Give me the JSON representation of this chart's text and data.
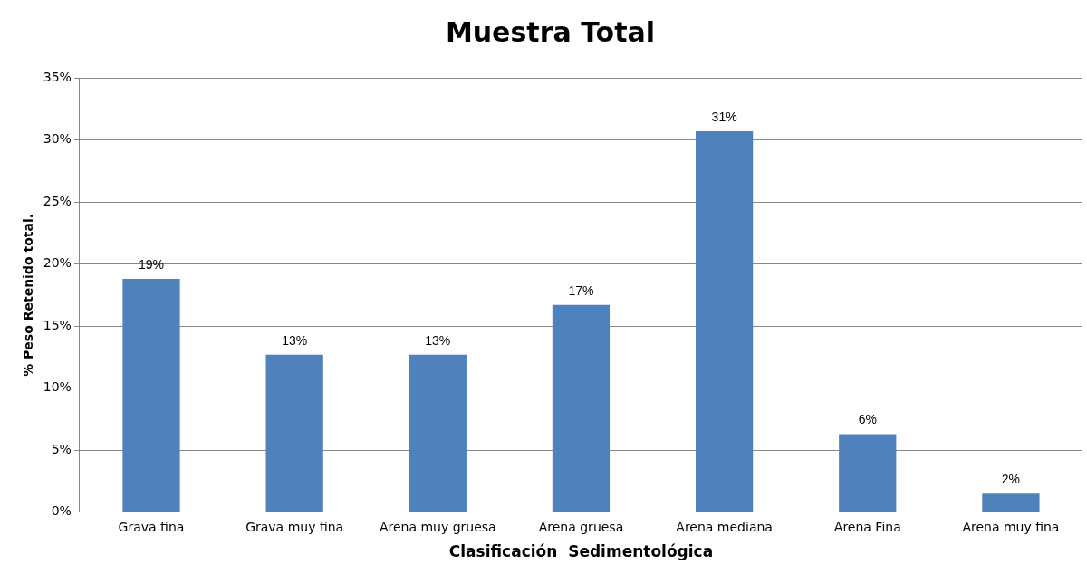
{
  "chart_data": {
    "type": "bar",
    "title": "Muestra Total",
    "xlabel": "Clasificación  Sedimentológica",
    "ylabel": "% Peso Retenido total.",
    "categories": [
      "Grava fina",
      "Grava muy fina",
      "Arena muy gruesa",
      "Arena gruesa",
      "Arena mediana",
      "Arena Fina",
      "Arena muy fina"
    ],
    "values": [
      18.8,
      12.7,
      12.7,
      16.7,
      30.7,
      6.3,
      1.5
    ],
    "value_labels": [
      "19%",
      "13%",
      "13%",
      "17%",
      "31%",
      "6%",
      "2%"
    ],
    "color": "#4f81bd",
    "ylim": [
      0,
      35
    ],
    "yticks": [
      {
        "value": 0,
        "label": "0%"
      },
      {
        "value": 5,
        "label": "5%"
      },
      {
        "value": 10,
        "label": "10%"
      },
      {
        "value": 15,
        "label": "15%"
      },
      {
        "value": 20,
        "label": "20%"
      },
      {
        "value": 25,
        "label": "25%"
      },
      {
        "value": 30,
        "label": "30%"
      },
      {
        "value": 35,
        "label": "35%"
      }
    ],
    "grid": "y",
    "legend": false
  }
}
